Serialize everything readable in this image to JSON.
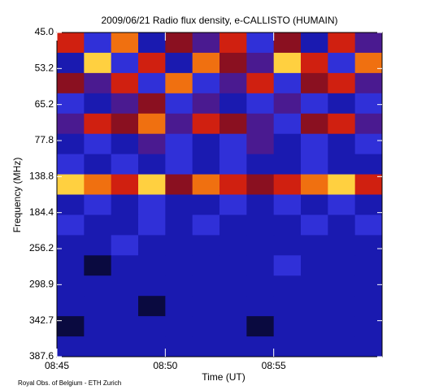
{
  "chart_data": {
    "type": "spectrogram",
    "title": "2009/06/21  Radio flux density, e-CALLISTO (HUMAIN)",
    "x_label": "Time (UT)",
    "y_label": "Frequency (MHz)",
    "footer": "Royal Obs. of Belgium - ETH Zurich",
    "xlim": [
      "08:45",
      "09:00"
    ],
    "xticks": [
      "08:45",
      "08:50",
      "08:55"
    ],
    "yticks": [
      {
        "value": 45,
        "label": "45.0"
      },
      53.2,
      65.2,
      77.8,
      138.8,
      184.4,
      256.2,
      298.9,
      342.7,
      387.6
    ],
    "colormap": [
      "#000000",
      "#0a0a40",
      "#1a1ab0",
      "#3030d8",
      "#4a1a90",
      "#8a1020",
      "#d02010",
      "#f07010",
      "#ffd040",
      "#ffffff"
    ],
    "z": [
      [
        6,
        3,
        7,
        2,
        5,
        4,
        6,
        3,
        5,
        2,
        6,
        4
      ],
      [
        2,
        8,
        3,
        6,
        2,
        7,
        5,
        4,
        8,
        6,
        3,
        7
      ],
      [
        5,
        4,
        6,
        3,
        7,
        3,
        4,
        6,
        3,
        5,
        6,
        4
      ],
      [
        3,
        2,
        4,
        5,
        3,
        4,
        2,
        3,
        4,
        3,
        2,
        3
      ],
      [
        4,
        6,
        5,
        7,
        4,
        6,
        5,
        4,
        3,
        5,
        6,
        4
      ],
      [
        2,
        3,
        2,
        4,
        3,
        2,
        3,
        4,
        2,
        3,
        2,
        3
      ],
      [
        3,
        2,
        3,
        2,
        3,
        2,
        3,
        2,
        2,
        3,
        2,
        2
      ],
      [
        8,
        7,
        6,
        8,
        5,
        7,
        6,
        5,
        6,
        7,
        8,
        6
      ],
      [
        2,
        3,
        2,
        3,
        2,
        2,
        3,
        2,
        3,
        2,
        3,
        2
      ],
      [
        3,
        2,
        2,
        3,
        2,
        3,
        2,
        2,
        2,
        3,
        2,
        3
      ],
      [
        2,
        2,
        3,
        2,
        2,
        2,
        2,
        2,
        2,
        2,
        2,
        2
      ],
      [
        2,
        1,
        2,
        2,
        2,
        2,
        2,
        2,
        3,
        2,
        2,
        2
      ],
      [
        2,
        2,
        2,
        2,
        2,
        2,
        2,
        2,
        2,
        2,
        2,
        2
      ],
      [
        2,
        2,
        2,
        1,
        2,
        2,
        2,
        2,
        2,
        2,
        2,
        2
      ],
      [
        1,
        2,
        2,
        2,
        2,
        2,
        2,
        1,
        2,
        2,
        2,
        2
      ],
      [
        2,
        2,
        2,
        2,
        2,
        2,
        2,
        2,
        2,
        2,
        2,
        2
      ]
    ]
  }
}
